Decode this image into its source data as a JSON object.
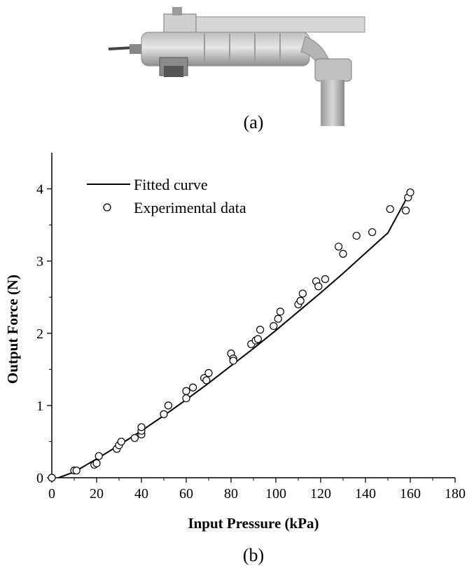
{
  "figure": {
    "caption_a": "(a)",
    "caption_b": "(b)"
  },
  "chart_data": {
    "type": "scatter",
    "xlabel": "Input Pressure (kPa)",
    "ylabel": "Output Force (N)",
    "xlim": [
      0,
      180
    ],
    "ylim": [
      0,
      4.5
    ],
    "xticks": [
      0,
      20,
      40,
      60,
      80,
      100,
      120,
      140,
      160,
      180
    ],
    "yticks": [
      0,
      1,
      2,
      3,
      4
    ],
    "grid": false,
    "legend_position": "top-left",
    "series": [
      {
        "name": "Fitted curve",
        "kind": "line",
        "color": "#000000",
        "x": [
          3,
          10,
          20,
          30,
          40,
          50,
          60,
          70,
          80,
          90,
          100,
          110,
          120,
          130,
          140,
          150,
          160
        ],
        "y": [
          0,
          0.08,
          0.26,
          0.45,
          0.65,
          0.86,
          1.08,
          1.31,
          1.55,
          1.79,
          2.04,
          2.3,
          2.56,
          2.83,
          3.11,
          3.39,
          3.96
        ]
      },
      {
        "name": "Experimental data",
        "kind": "scatter",
        "marker": "open-circle",
        "color": "#000000",
        "x": [
          0,
          10,
          11,
          19,
          20,
          21,
          29,
          30,
          31,
          37,
          40,
          40,
          40,
          50,
          52,
          60,
          60,
          63,
          68,
          69,
          70,
          80,
          81,
          81,
          89,
          91,
          92,
          93,
          99,
          101,
          102,
          110,
          111,
          112,
          118,
          119,
          122,
          128,
          130,
          136,
          143,
          151,
          158,
          159,
          160
        ],
        "y": [
          0,
          0.1,
          0.1,
          0.18,
          0.2,
          0.3,
          0.4,
          0.45,
          0.5,
          0.55,
          0.6,
          0.65,
          0.7,
          0.88,
          1.0,
          1.1,
          1.2,
          1.25,
          1.38,
          1.35,
          1.45,
          1.72,
          1.65,
          1.62,
          1.85,
          1.9,
          1.92,
          2.05,
          2.1,
          2.2,
          2.3,
          2.4,
          2.45,
          2.55,
          2.72,
          2.65,
          2.75,
          3.2,
          3.1,
          3.35,
          3.4,
          3.72,
          3.7,
          3.88,
          3.95
        ]
      }
    ]
  }
}
